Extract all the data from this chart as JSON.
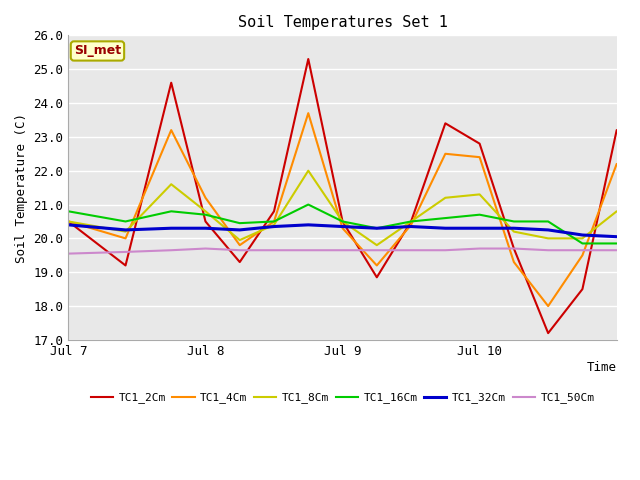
{
  "title": "Soil Temperatures Set 1",
  "xlabel": "Time",
  "ylabel": "Soil Temperature (C)",
  "ylim": [
    17.0,
    26.0
  ],
  "yticks": [
    17.0,
    18.0,
    19.0,
    20.0,
    21.0,
    22.0,
    23.0,
    24.0,
    25.0,
    26.0
  ],
  "xtick_labels": [
    "Jul 7",
    "Jul 8",
    "Jul 9",
    "Jul 10"
  ],
  "fig_facecolor": "#ffffff",
  "plot_bg_color": "#e8e8e8",
  "grid_color": "#ffffff",
  "annotation_text": "SI_met",
  "annotation_color": "#990000",
  "annotation_bg": "#ffffcc",
  "annotation_edge": "#aaaa00",
  "legend_entries": [
    "TC1_2Cm",
    "TC1_4Cm",
    "TC1_8Cm",
    "TC1_16Cm",
    "TC1_32Cm",
    "TC1_50Cm"
  ],
  "line_colors": [
    "#cc0000",
    "#ff8c00",
    "#cccc00",
    "#00cc00",
    "#0000cc",
    "#cc88cc"
  ],
  "line_widths": [
    1.5,
    1.5,
    1.5,
    1.5,
    2.2,
    1.5
  ],
  "series": {
    "TC1_2Cm": {
      "x": [
        0,
        10,
        18,
        24,
        30,
        36,
        42,
        48,
        54,
        60,
        66,
        72,
        78,
        84,
        90,
        96
      ],
      "y": [
        20.5,
        19.2,
        24.6,
        20.5,
        19.3,
        20.8,
        25.3,
        20.5,
        18.85,
        20.5,
        23.4,
        22.8,
        19.7,
        17.2,
        18.5,
        23.2
      ]
    },
    "TC1_4Cm": {
      "x": [
        0,
        10,
        18,
        24,
        30,
        36,
        42,
        48,
        54,
        60,
        66,
        72,
        78,
        84,
        90,
        96
      ],
      "y": [
        20.5,
        20.0,
        23.2,
        21.2,
        19.8,
        20.5,
        23.7,
        20.3,
        19.2,
        20.4,
        22.5,
        22.4,
        19.3,
        18.0,
        19.5,
        22.2
      ]
    },
    "TC1_8Cm": {
      "x": [
        0,
        10,
        18,
        24,
        30,
        36,
        42,
        48,
        54,
        60,
        66,
        72,
        78,
        84,
        90,
        96
      ],
      "y": [
        20.5,
        20.2,
        21.6,
        20.8,
        19.95,
        20.4,
        22.0,
        20.5,
        19.8,
        20.5,
        21.2,
        21.3,
        20.2,
        20.0,
        20.0,
        20.8
      ]
    },
    "TC1_16Cm": {
      "x": [
        0,
        10,
        18,
        24,
        30,
        36,
        42,
        48,
        54,
        60,
        66,
        72,
        78,
        84,
        90,
        96
      ],
      "y": [
        20.8,
        20.5,
        20.8,
        20.7,
        20.45,
        20.5,
        21.0,
        20.5,
        20.3,
        20.5,
        20.6,
        20.7,
        20.5,
        20.5,
        19.85,
        19.85
      ]
    },
    "TC1_32Cm": {
      "x": [
        0,
        10,
        18,
        24,
        30,
        36,
        42,
        48,
        54,
        60,
        66,
        72,
        78,
        84,
        90,
        96
      ],
      "y": [
        20.4,
        20.25,
        20.3,
        20.3,
        20.25,
        20.35,
        20.4,
        20.35,
        20.3,
        20.35,
        20.3,
        20.3,
        20.3,
        20.25,
        20.1,
        20.05
      ]
    },
    "TC1_50Cm": {
      "x": [
        0,
        10,
        18,
        24,
        30,
        36,
        42,
        48,
        54,
        60,
        66,
        72,
        78,
        84,
        90,
        96
      ],
      "y": [
        19.55,
        19.6,
        19.65,
        19.7,
        19.65,
        19.65,
        19.65,
        19.65,
        19.65,
        19.65,
        19.65,
        19.7,
        19.7,
        19.65,
        19.65,
        19.65
      ]
    }
  }
}
